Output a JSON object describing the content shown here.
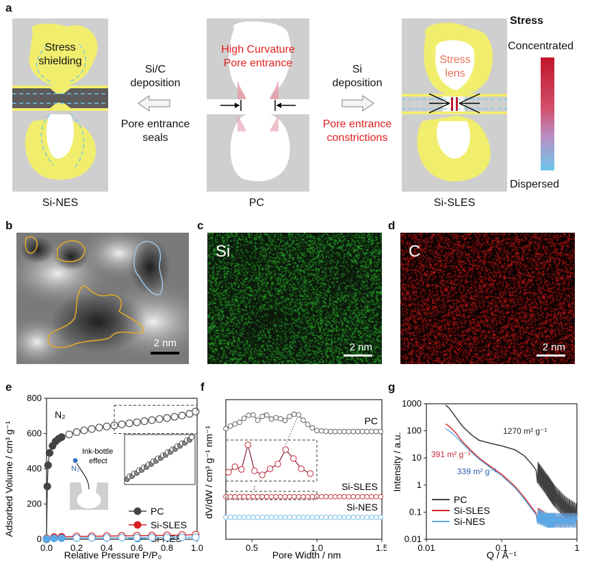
{
  "panel_a": {
    "label": "a",
    "si_nes": {
      "top_text_1": "Stress",
      "top_text_2": "shielding",
      "caption": "Si-NES"
    },
    "pc": {
      "top_text_1": "High Curvature",
      "top_text_2": "Pore entrance",
      "caption": "PC"
    },
    "si_sles": {
      "top_text_1": "Stress",
      "top_text_2": "lens",
      "caption": "Si-SLES"
    },
    "left_arrow": {
      "line1": "Si/C",
      "line2": "deposition",
      "line3": "Pore entrance",
      "line4": "seals"
    },
    "right_arrow": {
      "line1": "Si",
      "line2": "deposition",
      "line3": "Pore entrance",
      "line4": "constrictions"
    },
    "stress_bar": {
      "title": "Stress",
      "top": "Concentrated",
      "bottom": "Dispersed",
      "color_top": "#c0152a",
      "color_bottom": "#6ec6ea"
    }
  },
  "panel_b": {
    "label": "b",
    "scale": "2 nm"
  },
  "panel_c": {
    "label": "c",
    "element": "Si",
    "scale": "2 nm",
    "color": "#2ec22e"
  },
  "panel_d": {
    "label": "d",
    "element": "C",
    "scale": "2 nm",
    "color": "#e41c1c"
  },
  "panel_e": {
    "label": "e",
    "ylabel": "Adsorbed Volume / cm³ g⁻¹",
    "xlabel": "Relative Pressure P/P₀",
    "gas": "N₂",
    "inset_text_1": "Ink-bottle",
    "inset_text_2": "effect",
    "inset_gas": "N₂",
    "legend": [
      "PC",
      "Si-SLES",
      "Si-NES"
    ],
    "xticks": [
      "0.0",
      "0.2",
      "0.4",
      "0.6",
      "0.8",
      "1.0"
    ],
    "yticks": [
      "0",
      "200",
      "400",
      "600",
      "800"
    ]
  },
  "panel_f": {
    "label": "f",
    "ylabel": "dV/dW / cm³ g⁻¹ nm⁻¹",
    "xlabel": "Pore Width / nm",
    "series_labels": [
      "PC",
      "Si-SLES",
      "Si-NES"
    ],
    "xticks": [
      "0.5",
      "1.0",
      "1.5"
    ]
  },
  "panel_g": {
    "label": "g",
    "ylabel": "Intensity / a.u.",
    "xlabel": "Q / Å⁻¹",
    "annotations": [
      "1270 m² g⁻¹",
      "391 m² g⁻¹",
      "339 m² g⁻¹"
    ],
    "legend": [
      "PC",
      "Si-SLES",
      "Si-NES"
    ],
    "xticks": [
      "0.01",
      "0.1",
      "1"
    ],
    "yticks": [
      "1000",
      "100",
      "10",
      "1",
      "0.1",
      "0.01"
    ]
  },
  "chart_data": [
    {
      "type": "scatter",
      "panel": "e",
      "xlabel": "Relative Pressure P/P₀",
      "ylabel": "Adsorbed Volume / cm³ g⁻¹",
      "xlim": [
        0,
        1.0
      ],
      "ylim": [
        0,
        800
      ],
      "series": [
        {
          "name": "PC",
          "color": "#444444",
          "x": [
            0.0,
            0.005,
            0.01,
            0.02,
            0.04,
            0.06,
            0.08,
            0.1,
            0.15,
            0.2,
            0.25,
            0.3,
            0.35,
            0.4,
            0.45,
            0.5,
            0.55,
            0.6,
            0.65,
            0.7,
            0.75,
            0.8,
            0.85,
            0.9,
            0.95,
            0.99
          ],
          "y": [
            0,
            300,
            420,
            490,
            530,
            555,
            570,
            580,
            595,
            608,
            618,
            626,
            634,
            640,
            646,
            652,
            658,
            664,
            670,
            676,
            682,
            688,
            695,
            702,
            712,
            725
          ]
        },
        {
          "name": "Si-SLES",
          "color": "#d42020",
          "x": [
            0.0,
            0.05,
            0.1,
            0.2,
            0.3,
            0.4,
            0.5,
            0.6,
            0.7,
            0.8,
            0.9,
            0.99
          ],
          "y": [
            5,
            12,
            14,
            16,
            17,
            18,
            19,
            20,
            21,
            22,
            24,
            26
          ]
        },
        {
          "name": "Si-NES",
          "color": "#5aa9e6",
          "x": [
            0.0,
            0.05,
            0.1,
            0.2,
            0.3,
            0.4,
            0.5,
            0.6,
            0.7,
            0.8,
            0.9,
            0.99
          ],
          "y": [
            2,
            5,
            6,
            7,
            8,
            8,
            9,
            9,
            10,
            10,
            11,
            12
          ]
        }
      ]
    },
    {
      "type": "line",
      "panel": "f",
      "xlabel": "Pore Width / nm",
      "ylabel": "dV/dW / cm³ g⁻¹ nm⁻¹",
      "xlim": [
        0.3,
        1.5
      ],
      "series": [
        {
          "name": "PC",
          "color": "#555555",
          "x": [
            0.3,
            0.35,
            0.4,
            0.45,
            0.5,
            0.55,
            0.6,
            0.65,
            0.7,
            0.75,
            0.8,
            0.85,
            0.9,
            0.95,
            1.0,
            1.1,
            1.2,
            1.3,
            1.4,
            1.5
          ],
          "y": [
            0.2,
            0.4,
            0.5,
            0.8,
            1.0,
            0.6,
            1.0,
            0.7,
            0.8,
            0.6,
            0.9,
            1.0,
            0.6,
            0.3,
            0.1,
            0.05,
            0.05,
            0.05,
            0.05,
            0.05
          ]
        },
        {
          "name": "Si-SLES",
          "color": "#c0283a",
          "x": [
            0.3,
            0.5,
            0.7,
            0.9,
            1.0,
            1.2,
            1.5
          ],
          "y": [
            0.05,
            0.06,
            0.05,
            0.05,
            0.05,
            0.05,
            0.05
          ]
        },
        {
          "name": "Si-NES",
          "color": "#6bb7e8",
          "x": [
            0.3,
            0.5,
            0.7,
            0.9,
            1.0,
            1.2,
            1.5
          ],
          "y": [
            0.02,
            0.02,
            0.02,
            0.02,
            0.02,
            0.02,
            0.02
          ]
        }
      ]
    },
    {
      "type": "line",
      "panel": "g",
      "xlabel": "Q / Å⁻¹",
      "ylabel": "Intensity / a.u.",
      "xscale": "log",
      "yscale": "log",
      "xlim": [
        0.01,
        1
      ],
      "ylim": [
        0.01,
        1000
      ],
      "series": [
        {
          "name": "PC",
          "color": "#404040",
          "x": [
            0.018,
            0.02,
            0.025,
            0.03,
            0.04,
            0.05,
            0.07,
            0.1,
            0.15,
            0.2,
            0.25,
            0.3,
            0.4,
            0.5,
            0.7,
            1.0
          ],
          "y": [
            900,
            700,
            300,
            150,
            70,
            45,
            35,
            28,
            20,
            12,
            6,
            3,
            1.0,
            0.4,
            0.15,
            0.08
          ]
        },
        {
          "name": "Si-SLES",
          "color": "#d42020",
          "x": [
            0.018,
            0.02,
            0.025,
            0.03,
            0.04,
            0.05,
            0.07,
            0.1,
            0.15,
            0.2,
            0.25,
            0.3,
            0.4,
            0.5,
            0.7,
            1.0
          ],
          "y": [
            180,
            150,
            80,
            40,
            18,
            10,
            5,
            2.5,
            0.9,
            0.35,
            0.15,
            0.08,
            0.05,
            0.05,
            0.05,
            0.05
          ]
        },
        {
          "name": "Si-NES",
          "color": "#5aa9e6",
          "x": [
            0.018,
            0.02,
            0.025,
            0.03,
            0.04,
            0.05,
            0.07,
            0.1,
            0.15,
            0.2,
            0.25,
            0.3,
            0.4,
            0.5,
            0.7,
            1.0
          ],
          "y": [
            120,
            100,
            60,
            35,
            16,
            9,
            4.5,
            2.2,
            0.8,
            0.3,
            0.13,
            0.07,
            0.05,
            0.05,
            0.05,
            0.05
          ]
        }
      ]
    }
  ]
}
